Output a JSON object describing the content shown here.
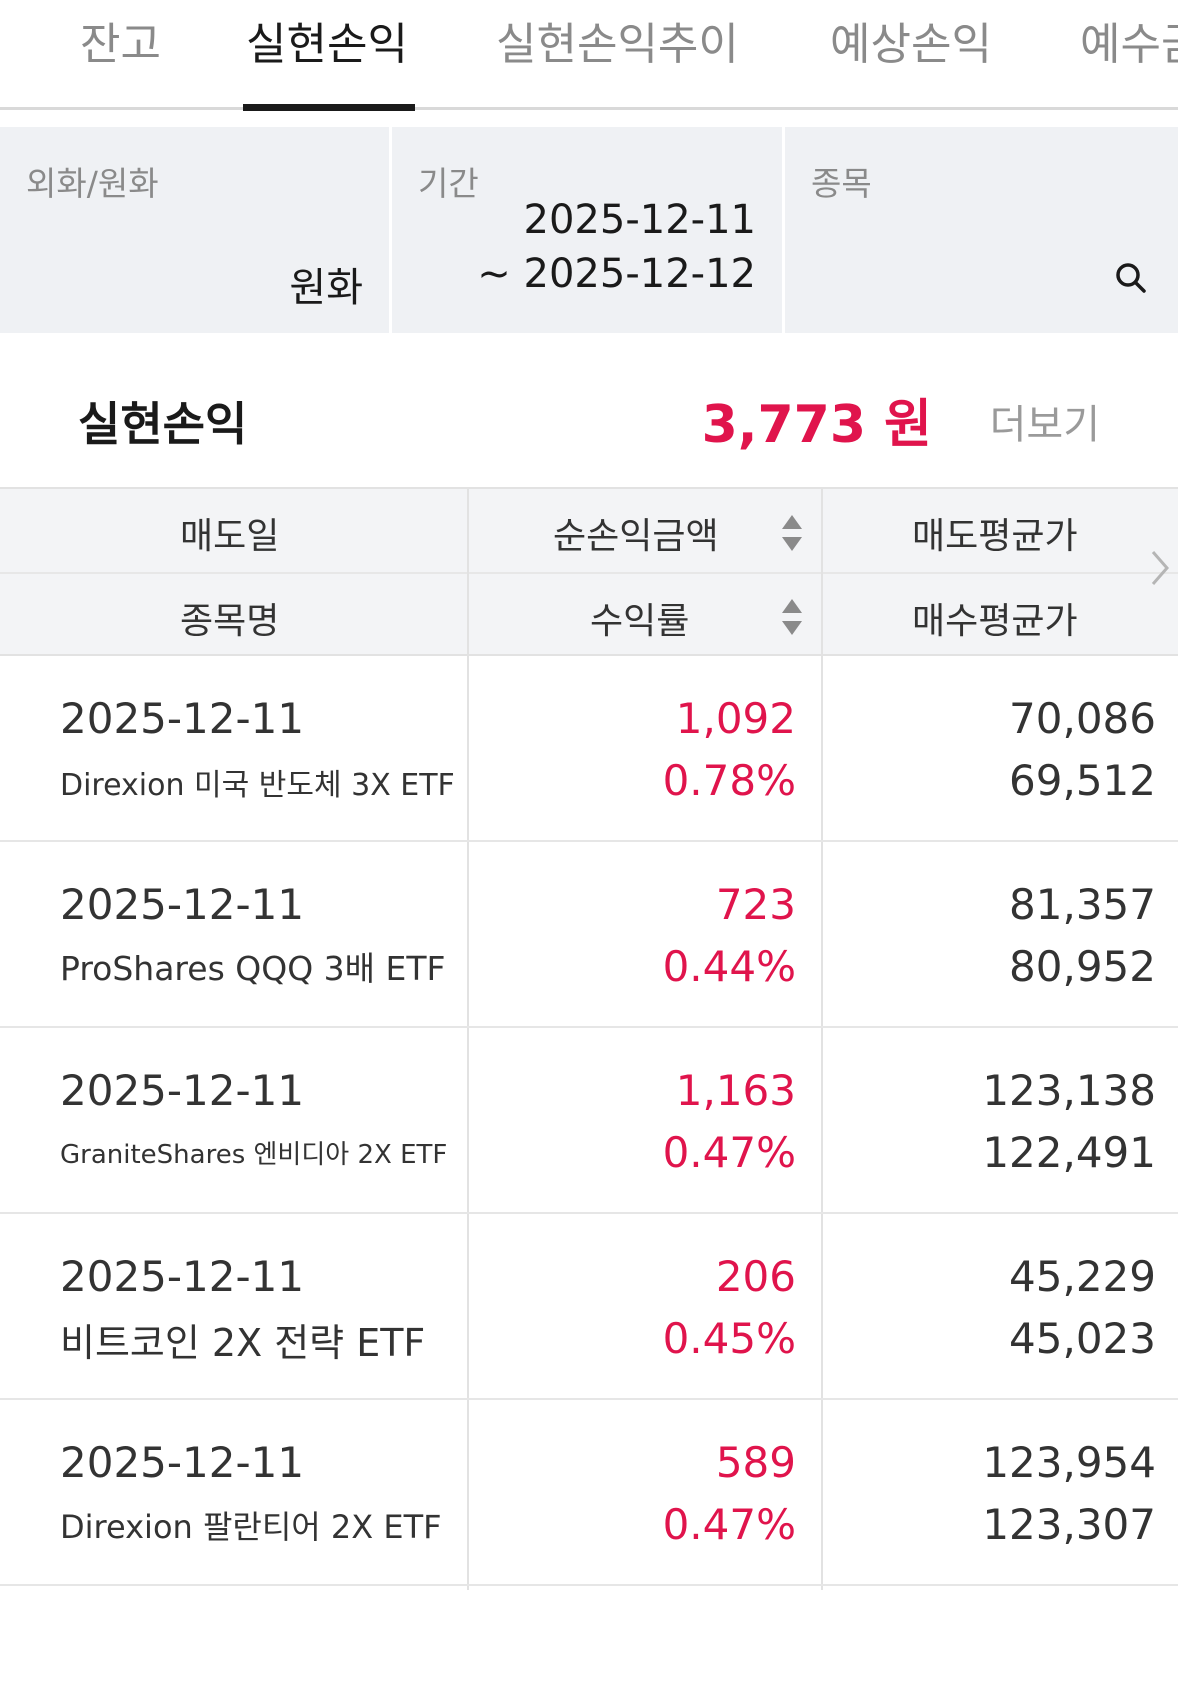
{
  "tabs": [
    {
      "label": "잔고",
      "active": false
    },
    {
      "label": "실현손익",
      "active": true
    },
    {
      "label": "실현손익추이",
      "active": false
    },
    {
      "label": "예상손익",
      "active": false
    },
    {
      "label": "예수금",
      "active": false
    }
  ],
  "filters": {
    "currency": {
      "label": "외화/원화",
      "value": "원화"
    },
    "period": {
      "label": "기간",
      "start": "2025-12-11",
      "end": "~ 2025-12-12"
    },
    "stock": {
      "label": "종목",
      "icon": "search-icon"
    }
  },
  "summary": {
    "title": "실현손익",
    "amount": "3,773 원",
    "more": "더보기"
  },
  "table": {
    "headers": {
      "sell_date": "매도일",
      "net_pnl": "순손익금액",
      "avg_sell": "매도평균가",
      "stock_name": "종목명",
      "return_rate": "수익률",
      "avg_buy": "매수평균가"
    },
    "rows": [
      {
        "date": "2025-12-11",
        "name": "Direxion 미국 반도체 3X ETF",
        "pnl": "1,092",
        "rate": "0.78%",
        "sell": "70,086",
        "buy": "69,512"
      },
      {
        "date": "2025-12-11",
        "name": "ProShares QQQ 3배 ETF",
        "pnl": "723",
        "rate": "0.44%",
        "sell": "81,357",
        "buy": "80,952"
      },
      {
        "date": "2025-12-11",
        "name": "GraniteShares 엔비디아 2X ETF",
        "pnl": "1,163",
        "rate": "0.47%",
        "sell": "123,138",
        "buy": "122,491"
      },
      {
        "date": "2025-12-11",
        "name": "비트코인 2X 전략 ETF",
        "pnl": "206",
        "rate": "0.45%",
        "sell": "45,229",
        "buy": "45,023"
      },
      {
        "date": "2025-12-11",
        "name": "Direxion 팔란티어 2X ETF",
        "pnl": "589",
        "rate": "0.47%",
        "sell": "123,954",
        "buy": "123,307"
      }
    ]
  },
  "colors": {
    "accent_red": "#e0144c",
    "header_bg": "#f3f4f6",
    "filter_bg": "#eff1f4"
  }
}
